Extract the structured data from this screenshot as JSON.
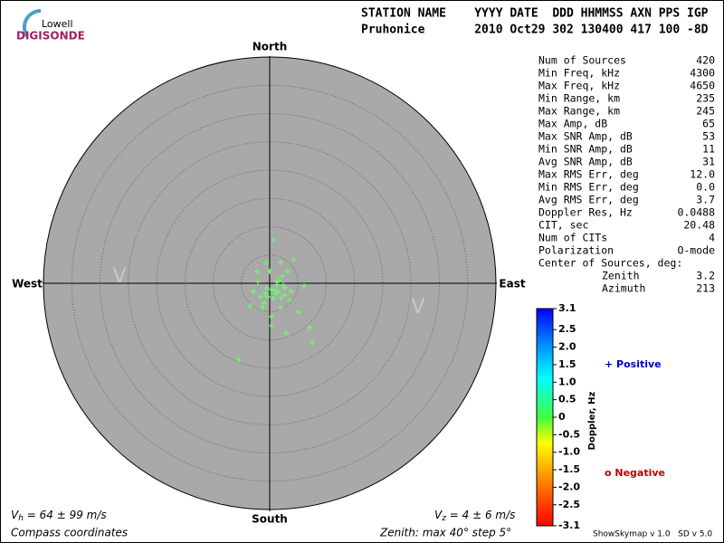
{
  "header": {
    "logo_top": "Lowell",
    "logo_bottom": "DIGISONDE",
    "columns": "STATION NAME    YYYY DATE  DDD HHMMSS AXN PPS IGP",
    "values": "Pruhonice       2010 Oct29 302 130400 417 100 -8D"
  },
  "stats": {
    "rows": [
      [
        "Num of Sources",
        "420"
      ],
      [
        "Min Freq, kHz",
        "4300"
      ],
      [
        "Max Freq, kHz",
        "4650"
      ],
      [
        "Min Range, km",
        "235"
      ],
      [
        "Max Range, km",
        "245"
      ],
      [
        "Max Amp, dB",
        "65"
      ],
      [
        "Max SNR Amp, dB",
        "53"
      ],
      [
        "Min SNR Amp, dB",
        "11"
      ],
      [
        "Avg SNR Amp, dB",
        "31"
      ],
      [
        "Max RMS Err, deg",
        "12.0"
      ],
      [
        "Min RMS Err, deg",
        "0.0"
      ],
      [
        "Avg RMS Err, deg",
        "3.7"
      ],
      [
        "Doppler Res, Hz",
        "0.0488"
      ],
      [
        "CIT, sec",
        "20.48"
      ],
      [
        "Num of CITs",
        "4"
      ],
      [
        "Polarization",
        "O-mode"
      ]
    ],
    "center_title": "Center of Sources, deg:",
    "center_rows": [
      [
        "Zenith",
        "3.2"
      ],
      [
        "Azimuth",
        "213"
      ]
    ]
  },
  "chart_data": {
    "type": "scatter",
    "directions": {
      "north": "North",
      "south": "South",
      "west": "West",
      "east": "East"
    },
    "velocity_marks": [
      "V",
      "V"
    ],
    "x": [
      0.6,
      -0.6,
      1.9,
      4.2,
      0,
      -2.1,
      -2.9,
      -1,
      1.1,
      2.7,
      3.5,
      5.1,
      7,
      7.5,
      2.9,
      -5.4,
      0.3,
      1.9,
      1.3,
      0.3,
      -0.3,
      2.2,
      -1.3,
      3.2,
      -2.2,
      1.6,
      0.6,
      2.6,
      -0.5,
      -1.6,
      3.8,
      6.1,
      0.3,
      -3.5,
      1.5,
      2.0,
      0.8,
      1.2,
      -0.8,
      2.4
    ],
    "y": [
      7.7,
      3.7,
      3.7,
      4.2,
      2.1,
      0.2,
      -1.4,
      -3.5,
      -1.9,
      -0.8,
      -3,
      -5.1,
      -7.8,
      -10.4,
      -8.8,
      -13.6,
      -5.9,
      -4.3,
      -0.3,
      -1.1,
      -2.4,
      1.3,
      -4.3,
      2.1,
      2.1,
      0.5,
      -2.7,
      -2.1,
      -0.8,
      -2.4,
      -1.4,
      -0.5,
      -7.5,
      -4,
      -1.5,
      -2.6,
      -1.2,
      0.2,
      -1.8,
      -0.4
    ],
    "color": "#66ff66",
    "xlim": [
      -40,
      40
    ],
    "ylim": [
      -40,
      40
    ],
    "colorbar": {
      "label": "Doppler, Hz",
      "ylim": [
        -3.1,
        3.1
      ],
      "ticks": [
        3.1,
        2.5,
        {
          "value": 2,
          "label": "2.0"
        },
        1.5,
        {
          "value": 1,
          "label": "1.0"
        },
        0.5,
        0,
        -0.5,
        {
          "value": -1,
          "label": "-1.0"
        },
        -1.5,
        {
          "value": -2,
          "label": "-2.0"
        },
        -2.5,
        -3.1
      ],
      "positive": "+ Positive",
      "negative": "o Negative"
    }
  },
  "footer": {
    "vh_symbol": "V",
    "vh_sub": "h",
    "vh_text": " = 64 ± 99 m/s",
    "vz_symbol": "V",
    "vz_sub": "z",
    "vz_text": " = 4 ± 6 m/s",
    "coordinates": "Compass coordinates",
    "zenith": "Zenith: max 40°  step 5°",
    "version": "ShowSkymap v 1.0   SD v 5.0"
  }
}
